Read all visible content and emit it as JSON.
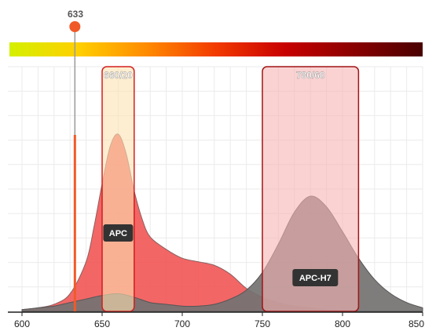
{
  "laser": {
    "wavelength_label": "633",
    "wavelength": 633,
    "color": "#f05a28"
  },
  "spectrum_bar": {
    "stops": [
      "#d4f000",
      "#ffd000",
      "#ff8a00",
      "#f23a00",
      "#c80000",
      "#8a0000",
      "#4a0000"
    ]
  },
  "filters": [
    {
      "label": "660/20",
      "center": 660,
      "width": 20,
      "fill": "#fde3b2",
      "stroke": "#d21e1e"
    },
    {
      "label": "780/60",
      "center": 780,
      "width": 60,
      "fill": "#f7b4b4",
      "stroke": "#a01414"
    }
  ],
  "dyes": [
    {
      "label": "APC",
      "color": "#f25555",
      "ex_color": "#b08a8a"
    },
    {
      "label": "APC-H7",
      "color": "#707070"
    }
  ],
  "chart_data": {
    "type": "area",
    "xlim": [
      600,
      850
    ],
    "x_ticks": [
      "600",
      "650",
      "700",
      "750",
      "800",
      "850"
    ],
    "series": [
      {
        "name": "APC",
        "x": [
          600,
          610,
          620,
          630,
          640,
          645,
          650,
          655,
          660,
          665,
          670,
          675,
          680,
          690,
          700,
          710,
          720,
          730,
          740,
          750,
          760,
          770,
          780,
          790,
          800,
          810,
          820,
          830,
          840,
          850
        ],
        "y": [
          1,
          2,
          4,
          10,
          28,
          48,
          72,
          93,
          100,
          89,
          68,
          52,
          42,
          35,
          30,
          28,
          26,
          21,
          13,
          8,
          5,
          3,
          2,
          1,
          0.5,
          0,
          0,
          0,
          0,
          0
        ]
      },
      {
        "name": "APC-H7",
        "x": [
          600,
          610,
          620,
          630,
          640,
          650,
          660,
          670,
          680,
          690,
          700,
          710,
          720,
          730,
          740,
          750,
          760,
          770,
          780,
          790,
          800,
          810,
          820,
          830,
          840,
          850
        ],
        "y": [
          1,
          2,
          3,
          5,
          7,
          9,
          10,
          8,
          5,
          4,
          3,
          3,
          4,
          7,
          12,
          22,
          38,
          56,
          65,
          59,
          45,
          30,
          18,
          10,
          5,
          2
        ]
      }
    ]
  }
}
